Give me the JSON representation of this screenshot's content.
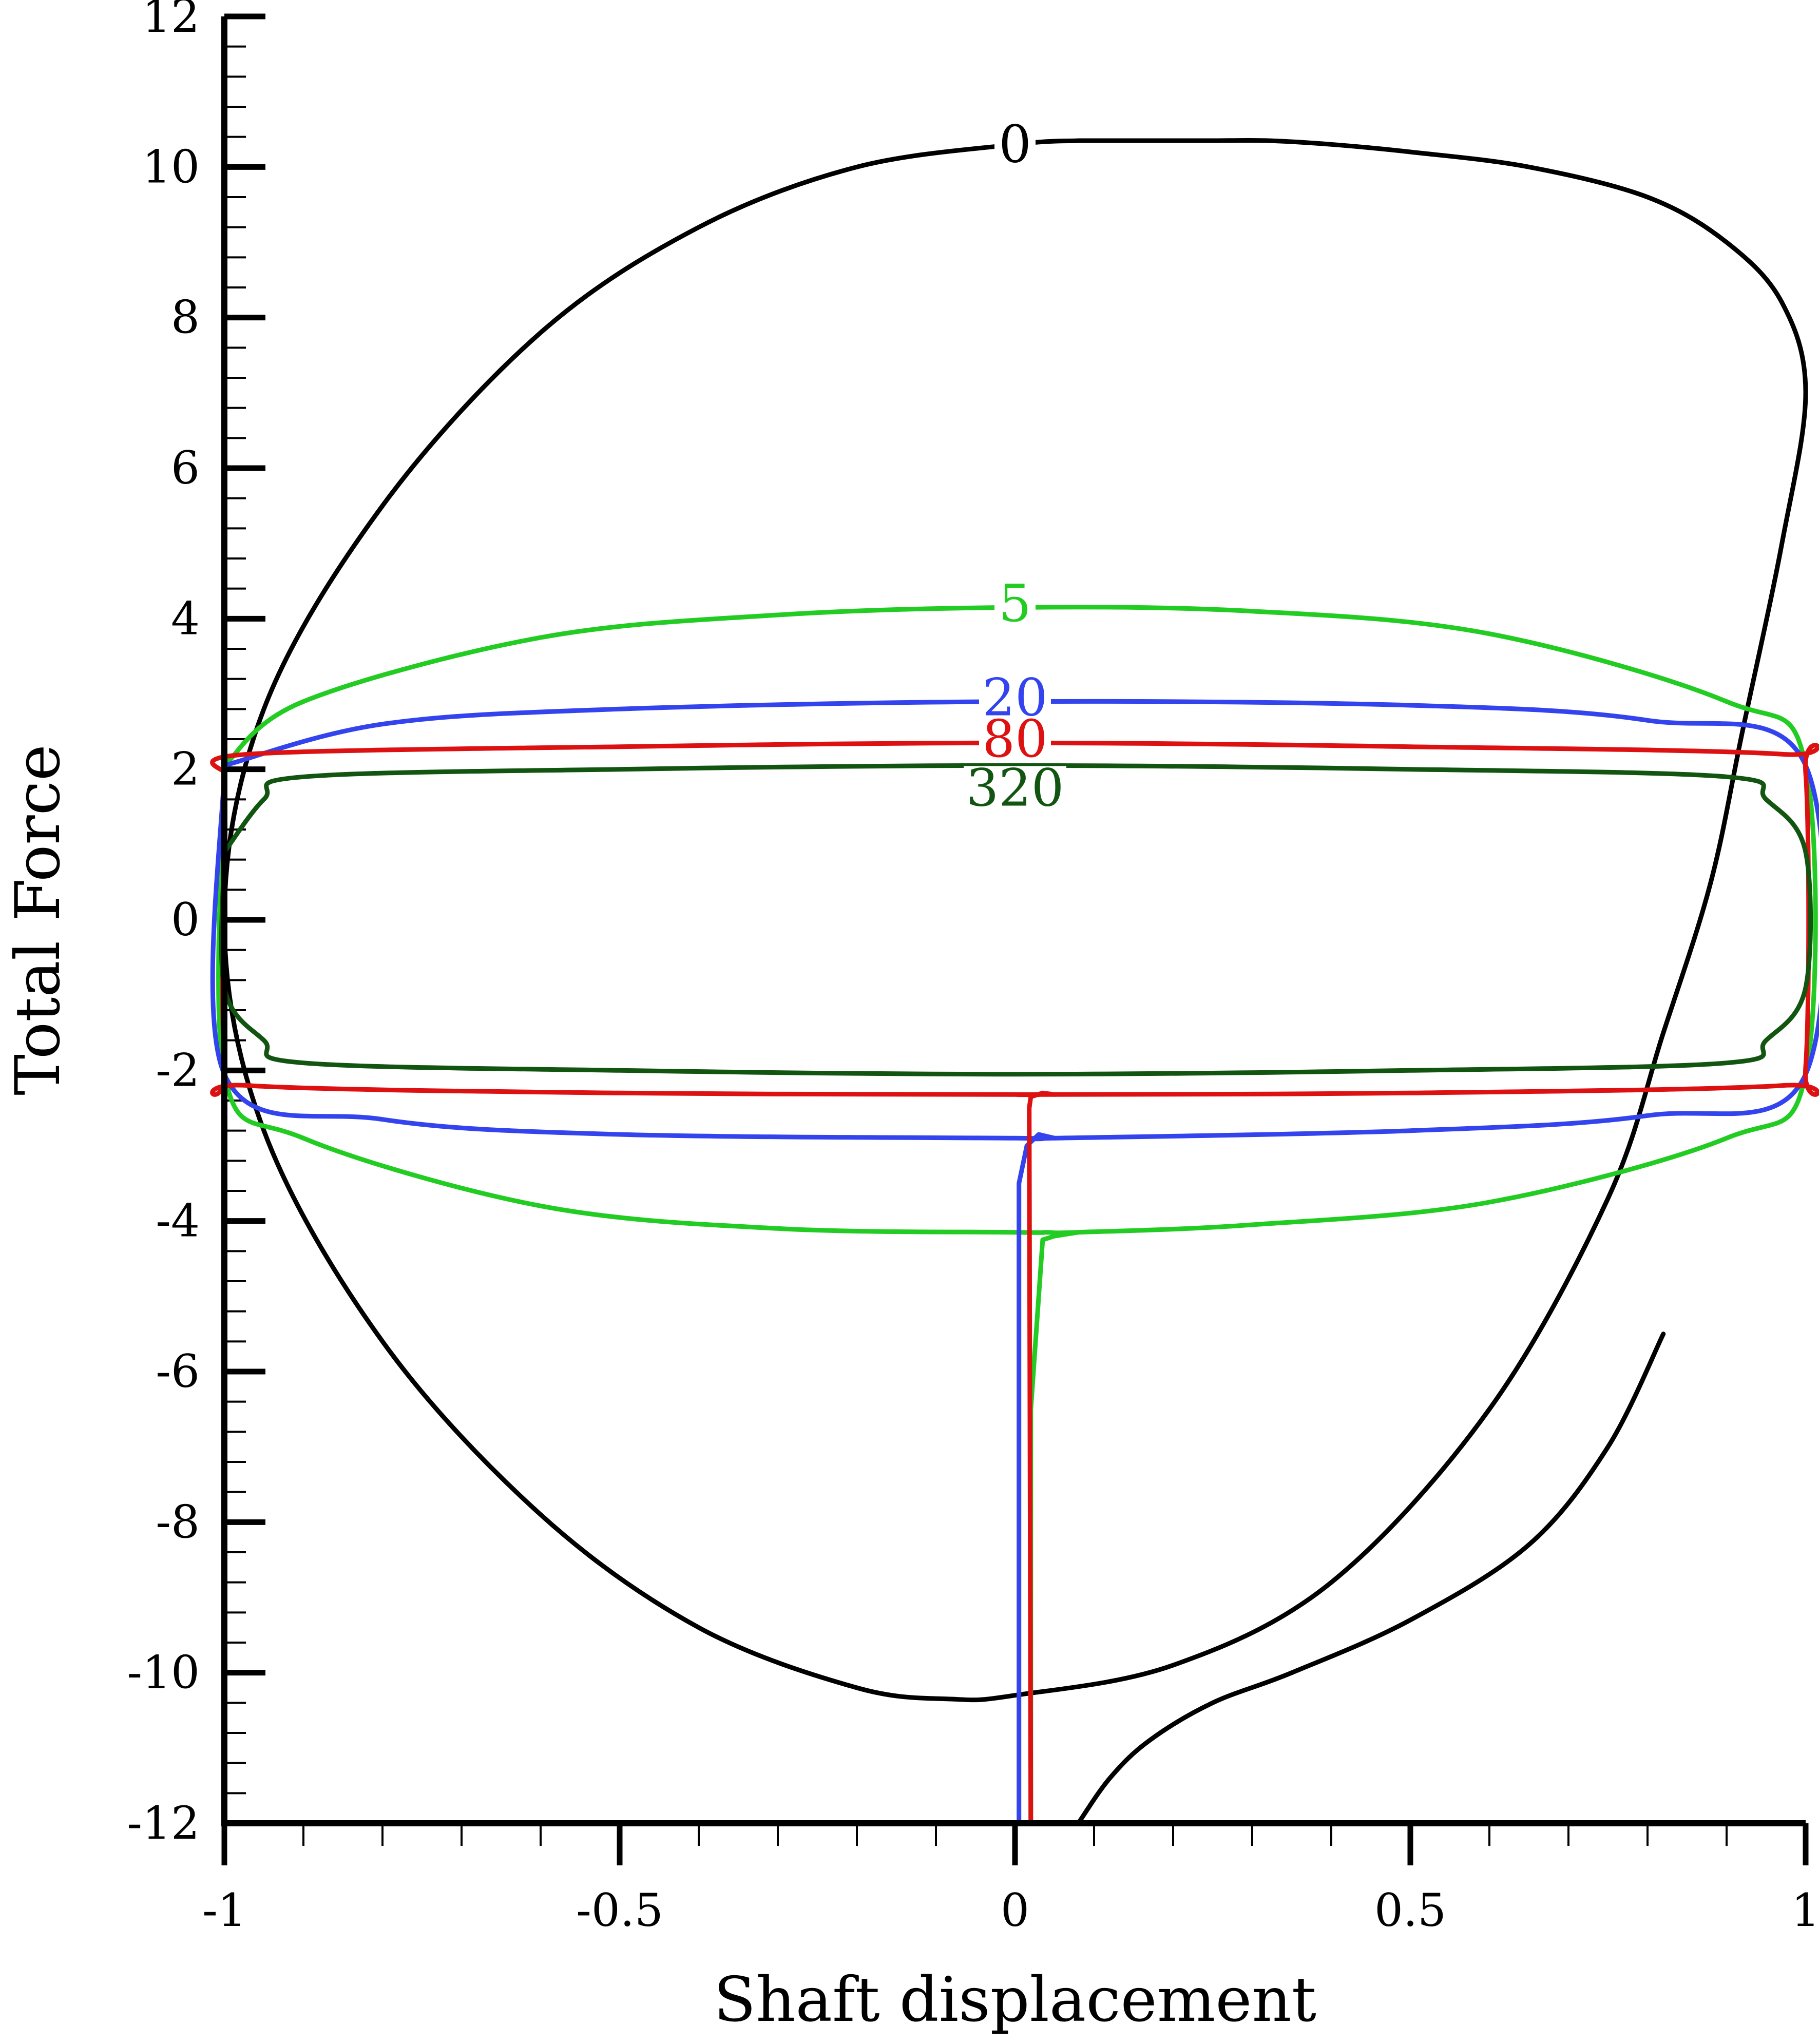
{
  "chart_data": {
    "type": "line",
    "title": "",
    "xlabel": "Shaft displacement",
    "ylabel": "Total Force",
    "xlim": [
      -1,
      1
    ],
    "ylim": [
      -12,
      12
    ],
    "xticks": [
      -1,
      -0.5,
      0,
      0.5,
      1
    ],
    "xtick_labels": [
      "-1",
      "-0.5",
      "0",
      "0.5",
      "1"
    ],
    "yticks": [
      -12,
      -10,
      -8,
      -6,
      -4,
      -2,
      0,
      2,
      4,
      6,
      8,
      10,
      12
    ],
    "ytick_labels": [
      "-12",
      "-10",
      "-8",
      "-6",
      "-4",
      "-2",
      "0",
      "2",
      "4",
      "6",
      "8",
      "10",
      "12"
    ],
    "grid": false,
    "legend": "none",
    "series": [
      {
        "label": "0",
        "color": "#000000",
        "label_at": [
          0,
          10.3
        ],
        "x": [
          0.08,
          0.0,
          -0.2,
          -0.4,
          -0.6,
          -0.8,
          -0.95,
          -1.0,
          -0.95,
          -0.8,
          -0.6,
          -0.4,
          -0.2,
          -0.08,
          0.0,
          0.2,
          0.4,
          0.6,
          0.75,
          0.82,
          0.88,
          0.92,
          0.97,
          1.0,
          0.97,
          0.9,
          0.8,
          0.65,
          0.5,
          0.4,
          0.32,
          0.25,
          0.2,
          0.16,
          0.12,
          0.08
        ],
        "y": [
          10.35,
          10.3,
          10.0,
          9.2,
          7.8,
          5.5,
          2.8,
          0.0,
          -2.8,
          -5.6,
          -7.9,
          -9.4,
          -10.2,
          -10.35,
          -10.3,
          -9.9,
          -8.8,
          -6.5,
          -3.7,
          -1.5,
          0.5,
          2.5,
          5.0,
          7.0,
          8.2,
          9.0,
          9.6,
          10.0,
          10.2,
          10.3,
          10.35,
          10.35,
          10.35,
          10.35,
          10.35,
          10.35
        ]
      },
      {
        "label": "5",
        "color": "#22cc22",
        "label_at": [
          0,
          4.2
        ],
        "x": [
          -1.0,
          -0.9,
          -0.6,
          -0.3,
          0.0,
          0.3,
          0.6,
          0.9,
          1.0,
          1.0,
          0.9,
          0.6,
          0.3,
          0.08,
          0.04,
          0.0,
          -0.3,
          -0.6,
          -0.9,
          -1.0,
          -1.0
        ],
        "y": [
          2.05,
          2.9,
          3.75,
          4.05,
          4.15,
          4.1,
          3.8,
          2.9,
          2.05,
          -2.05,
          -2.9,
          -3.75,
          -4.05,
          -4.15,
          -4.15,
          -4.15,
          -4.1,
          -3.8,
          -2.9,
          -2.05,
          2.05
        ]
      },
      {
        "label": "20",
        "color": "#3344ee",
        "label_at": [
          0,
          2.95
        ],
        "x": [
          -1.0,
          -0.8,
          -0.5,
          0.0,
          0.5,
          0.8,
          1.0,
          1.0,
          0.8,
          0.5,
          0.05,
          0.0,
          -0.5,
          -0.8,
          -1.0,
          -1.0
        ],
        "y": [
          2.05,
          2.6,
          2.8,
          2.9,
          2.85,
          2.65,
          2.05,
          -2.05,
          -2.6,
          -2.8,
          -2.9,
          -2.9,
          -2.85,
          -2.65,
          -2.05,
          2.05
        ]
      },
      {
        "label": "80",
        "color": "#dd1111",
        "label_at": [
          0,
          2.4
        ],
        "x": [
          -1.0,
          -0.97,
          -0.5,
          0.0,
          0.5,
          0.97,
          1.0,
          1.0,
          0.97,
          0.5,
          0.03,
          0.0,
          -0.5,
          -0.97,
          -1.0,
          -1.0
        ],
        "y": [
          1.95,
          2.2,
          2.3,
          2.35,
          2.3,
          2.2,
          1.95,
          -1.95,
          -2.2,
          -2.3,
          -2.32,
          -2.32,
          -2.3,
          -2.2,
          -1.95,
          1.95
        ]
      },
      {
        "label": "320",
        "color": "#115511",
        "label_at": [
          0,
          1.75
        ],
        "x": [
          -1.0,
          -0.95,
          -0.9,
          -0.5,
          0.0,
          0.5,
          0.9,
          0.95,
          1.0,
          1.0,
          0.95,
          0.9,
          0.5,
          0.0,
          -0.5,
          -0.9,
          -0.95,
          -1.0,
          -1.0
        ],
        "y": [
          0.9,
          1.6,
          1.9,
          2.0,
          2.05,
          2.0,
          1.9,
          1.6,
          0.9,
          -0.9,
          -1.6,
          -1.9,
          -2.0,
          -2.05,
          -2.0,
          -1.9,
          -1.6,
          -0.9,
          0.9
        ]
      }
    ],
    "transients": [
      {
        "color": "#000000",
        "x": [
          0.08,
          0.12,
          0.17,
          0.25,
          0.35,
          0.5,
          0.65,
          0.75,
          0.82
        ],
        "y": [
          -12.0,
          -11.4,
          -10.9,
          -10.4,
          -10.0,
          -9.3,
          -8.3,
          -7.0,
          -5.5
        ]
      },
      {
        "color": "#22cc22",
        "x": [
          0.02,
          0.02,
          0.035,
          0.05,
          0.08
        ],
        "y": [
          -12.0,
          -6.5,
          -4.25,
          -4.2,
          -4.15
        ]
      },
      {
        "color": "#3344ee",
        "x": [
          0.005,
          0.005,
          0.015,
          0.03,
          0.05
        ],
        "y": [
          -12.0,
          -3.5,
          -3.0,
          -2.85,
          -2.9
        ]
      },
      {
        "color": "#dd1111",
        "x": [
          0.02,
          0.018,
          0.02,
          0.035,
          0.05
        ],
        "y": [
          -12.0,
          -2.5,
          -2.35,
          -2.3,
          -2.32
        ]
      }
    ]
  }
}
